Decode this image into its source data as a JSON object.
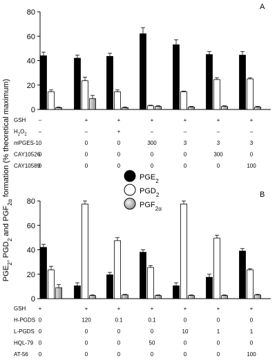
{
  "ylabel_parts": [
    "PGE",
    "2",
    ", PGD",
    "2",
    " and PGF",
    "2α",
    " formation (% theoretical maximum)"
  ],
  "legend": [
    {
      "key": "pge2",
      "base": "PGE",
      "sub": "2",
      "fill": "#000000"
    },
    {
      "key": "pgd2",
      "base": "PGD",
      "sub": "2",
      "fill": "#ffffff"
    },
    {
      "key": "pgf2a",
      "base": "PGF",
      "sub": "2α",
      "fill": "#bdbdbd"
    }
  ],
  "colors": {
    "pge2": "#000000",
    "pgd2": "#ffffff",
    "pgf2a": "#bdbdbd"
  },
  "chart_data": [
    {
      "type": "bar",
      "panel": "A",
      "ylim": [
        0,
        80
      ],
      "yticks": [
        0,
        20,
        40,
        60,
        80
      ],
      "conditions": [
        {
          "label": "GSH",
          "parts": [
            "GSH"
          ],
          "values": [
            "–",
            "+",
            "+",
            "+",
            "+",
            "+",
            "+"
          ]
        },
        {
          "label": "H2O2",
          "parts": [
            "H",
            "2",
            "O",
            "2"
          ],
          "values": [
            "–",
            "–",
            "+",
            "–",
            "–",
            "–",
            "–"
          ]
        },
        {
          "label": "mPGES-1",
          "parts": [
            "mPGES-1"
          ],
          "values": [
            "0",
            "0",
            "0",
            "300",
            "3",
            "3",
            "3"
          ]
        },
        {
          "label": "CAY10526",
          "parts": [
            "CAY10526"
          ],
          "values": [
            "0",
            "0",
            "0",
            "0",
            "0",
            "300",
            "0"
          ]
        },
        {
          "label": "CAY10589",
          "parts": [
            "CAY10589"
          ],
          "values": [
            "0",
            "0",
            "0",
            "0",
            "0",
            "0",
            "100"
          ]
        }
      ],
      "series": [
        {
          "key": "pge2",
          "values": [
            44,
            42,
            43.5,
            62,
            53,
            45,
            44.5
          ],
          "errors": [
            3,
            2.5,
            2.5,
            5,
            4,
            2.5,
            3
          ]
        },
        {
          "key": "pgd2",
          "values": [
            14.5,
            23.5,
            14.5,
            3,
            14.5,
            24.5,
            25
          ],
          "errors": [
            1.5,
            3,
            1.5,
            0.5,
            0.5,
            1.5,
            1
          ]
        },
        {
          "key": "pgf2a",
          "values": [
            1.5,
            9,
            1.5,
            2.5,
            2,
            2.5,
            2
          ],
          "errors": [
            0.5,
            2.5,
            0.5,
            0.5,
            0.5,
            0.5,
            0.5
          ]
        }
      ]
    },
    {
      "type": "bar",
      "panel": "B",
      "ylim": [
        0,
        80
      ],
      "yticks": [
        0,
        20,
        40,
        60,
        80
      ],
      "conditions": [
        {
          "label": "GSH",
          "parts": [
            "GSH"
          ],
          "values": [
            "+",
            "+",
            "+",
            "+",
            "+",
            "+",
            "+"
          ]
        },
        {
          "label": "H-PGDS",
          "parts": [
            "H-PGDS"
          ],
          "values": [
            "0",
            "120",
            "0.1",
            "0.1",
            "0",
            "0",
            "0"
          ]
        },
        {
          "label": "L-PGDS",
          "parts": [
            "L-PGDS"
          ],
          "values": [
            "0",
            "0",
            "0",
            "0",
            "10",
            "1",
            "1"
          ]
        },
        {
          "label": "HQL-79",
          "parts": [
            "HQL-79"
          ],
          "values": [
            "0",
            "0",
            "0",
            "50",
            "0",
            "0",
            "0"
          ]
        },
        {
          "label": "AT-56",
          "parts": [
            "AT-56"
          ],
          "values": [
            "0",
            "0",
            "0",
            "0",
            "0",
            "0",
            "100"
          ]
        }
      ],
      "series": [
        {
          "key": "pge2",
          "values": [
            42,
            10.5,
            19.5,
            38,
            10.5,
            17.5,
            39
          ],
          "errors": [
            2.5,
            2.5,
            2,
            2,
            2.5,
            2.5,
            2
          ]
        },
        {
          "key": "pgd2",
          "values": [
            23.5,
            77.5,
            47.5,
            25.5,
            77.5,
            49.5,
            23.5
          ],
          "errors": [
            3,
            2.5,
            2.5,
            1.5,
            2.5,
            2.5,
            1
          ]
        },
        {
          "key": "pgf2a",
          "values": [
            9,
            2.5,
            3,
            2.5,
            2.5,
            2.5,
            3
          ],
          "errors": [
            2.5,
            0.5,
            0.5,
            0.5,
            0.5,
            0.5,
            0.5
          ]
        }
      ]
    }
  ]
}
